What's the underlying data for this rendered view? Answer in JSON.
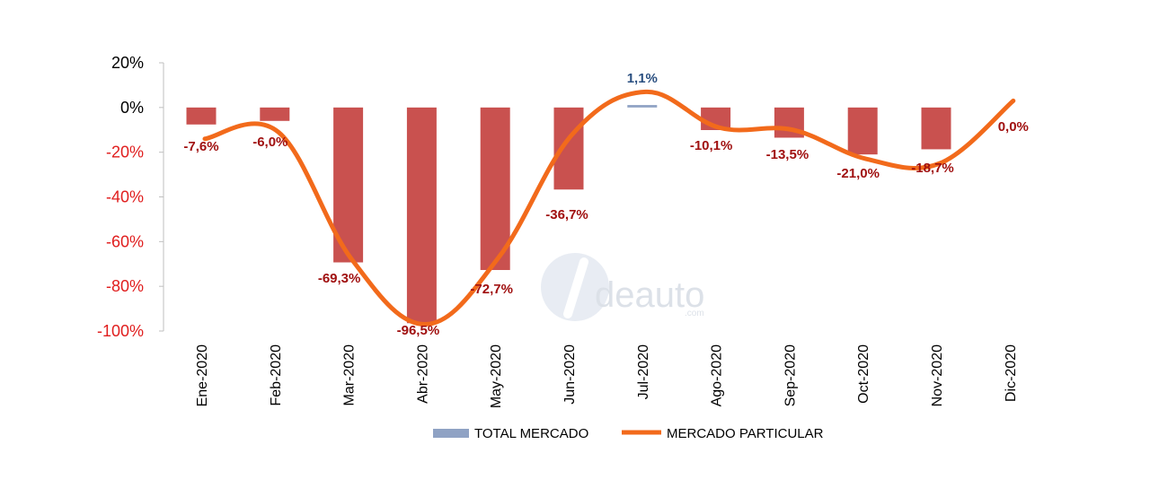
{
  "chart_data": {
    "type": "bar",
    "categories": [
      "Ene-2020",
      "Feb-2020",
      "Mar-2020",
      "Abr-2020",
      "May-2020",
      "Jun-2020",
      "Jul-2020",
      "Ago-2020",
      "Sep-2020",
      "Oct-2020",
      "Nov-2020",
      "Dic-2020"
    ],
    "series": [
      {
        "name": "TOTAL MERCADO",
        "kind": "bar",
        "values": [
          -7.6,
          -6.0,
          -69.3,
          -96.5,
          -72.7,
          -36.7,
          1.1,
          -10.1,
          -13.5,
          -21.0,
          -18.7,
          0.0
        ],
        "data_labels": [
          "-7,6%",
          "-6,0%",
          "-69,3%",
          "-96,5%",
          "-72,7%",
          "-36,7%",
          "1,1%",
          "-10,1%",
          "-13,5%",
          "-21,0%",
          "-18,7%",
          "0,0%"
        ],
        "bar_color_negative": "#c9514f",
        "bar_color_positive": "#8fa2c4",
        "label_color_negative": "#a01010",
        "label_color_positive": "#2a4f80"
      },
      {
        "name": "MERCADO PARTICULAR",
        "kind": "line",
        "values": [
          -14,
          -11,
          -68,
          -97,
          -67,
          -12,
          7,
          -9,
          -10,
          -23,
          -25,
          3
        ],
        "color": "#f26a1b"
      }
    ],
    "ylim": [
      -100,
      20
    ],
    "yticks": [
      20,
      0,
      -20,
      -40,
      -60,
      -80,
      -100
    ],
    "ytick_labels": [
      "20%",
      "0%",
      "-20%",
      "-40%",
      "-60%",
      "-80%",
      "-100%"
    ],
    "ytick_colors": {
      "positive": "#000000",
      "negative": "#e01e1e"
    },
    "legend": {
      "position": "bottom"
    },
    "grid": false
  },
  "legend": {
    "items": [
      {
        "label": "TOTAL MERCADO",
        "swatch_color": "#8fa2c4"
      },
      {
        "label": "MERCADO PARTICULAR",
        "swatch_color": "#f26a1b"
      }
    ]
  },
  "watermark": {
    "brand": "deauto",
    "sub": ".com"
  }
}
